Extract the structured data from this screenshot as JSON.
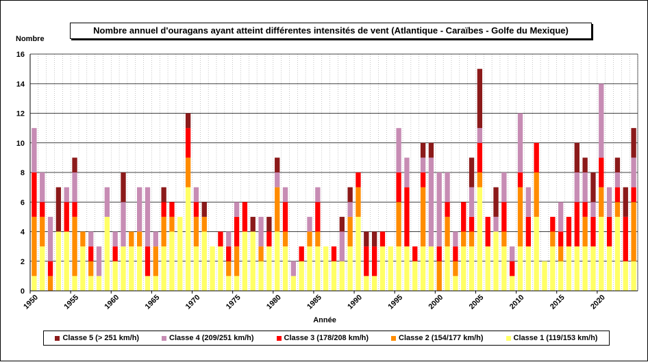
{
  "chart_data": {
    "type": "bar",
    "stacked": true,
    "title": "Nombre annuel d'ouragans ayant atteint différentes intensités de vent (Atlantique - Caraïbes - Golfe du Mexique)",
    "xlabel": "Année",
    "ylabel": "Nombre",
    "ylim": [
      0,
      16
    ],
    "yticks": [
      0,
      2,
      4,
      6,
      8,
      10,
      12,
      14,
      16
    ],
    "xtick_labels": [
      "1950",
      "1955",
      "1960",
      "1965",
      "1970",
      "1975",
      "1980",
      "1985",
      "1990",
      "1995",
      "2000",
      "2005",
      "2010",
      "2015",
      "2020"
    ],
    "grid": true,
    "legend_position": "bottom",
    "categories": [
      "1950",
      "1951",
      "1952",
      "1953",
      "1954",
      "1955",
      "1956",
      "1957",
      "1958",
      "1959",
      "1960",
      "1961",
      "1962",
      "1963",
      "1964",
      "1965",
      "1966",
      "1967",
      "1968",
      "1969",
      "1970",
      "1971",
      "1972",
      "1973",
      "1974",
      "1975",
      "1976",
      "1977",
      "1978",
      "1979",
      "1980",
      "1981",
      "1982",
      "1983",
      "1984",
      "1985",
      "1986",
      "1987",
      "1988",
      "1989",
      "1990",
      "1991",
      "1992",
      "1993",
      "1994",
      "1995",
      "1996",
      "1997",
      "1998",
      "1999",
      "2000",
      "2001",
      "2002",
      "2003",
      "2004",
      "2005",
      "2006",
      "2007",
      "2008",
      "2009",
      "2010",
      "2011",
      "2012",
      "2013",
      "2014",
      "2015",
      "2016",
      "2017",
      "2018",
      "2019",
      "2020",
      "2021",
      "2022",
      "2023",
      "2024"
    ],
    "series": [
      {
        "name": "Classe 1 (119/153 km/h)",
        "color": "#ffff66",
        "values": [
          1,
          3,
          0,
          4,
          4,
          1,
          3,
          1,
          1,
          5,
          2,
          3,
          3,
          3,
          1,
          1,
          3,
          4,
          5,
          7,
          3,
          4,
          3,
          3,
          1,
          1,
          4,
          4,
          2,
          3,
          4,
          3,
          1,
          2,
          3,
          3,
          3,
          2,
          2,
          3,
          5,
          1,
          1,
          3,
          3,
          3,
          3,
          2,
          3,
          3,
          0,
          3,
          1,
          3,
          3,
          7,
          3,
          4,
          3,
          1,
          3,
          3,
          5,
          2,
          3,
          2,
          3,
          3,
          3,
          3,
          5,
          3,
          5,
          2,
          2
        ]
      },
      {
        "name": "Classe 2 (154/177 km/h)",
        "color": "#ff8c00",
        "values": [
          4,
          2,
          1,
          0,
          0,
          4,
          1,
          1,
          0,
          0,
          0,
          0,
          1,
          1,
          0,
          2,
          2,
          1,
          0,
          2,
          2,
          1,
          0,
          0,
          1,
          2,
          0,
          0,
          1,
          0,
          3,
          1,
          0,
          0,
          1,
          1,
          0,
          0,
          0,
          2,
          2,
          0,
          0,
          0,
          0,
          3,
          0,
          0,
          4,
          0,
          2,
          2,
          1,
          1,
          1,
          1,
          0,
          0,
          1,
          0,
          4,
          0,
          3,
          0,
          1,
          1,
          0,
          0,
          2,
          0,
          2,
          0,
          1,
          0,
          4
        ]
      },
      {
        "name": "Classe 3 (178/208 km/h)",
        "color": "#ff0000",
        "values": [
          3,
          1,
          1,
          0,
          2,
          1,
          0,
          1,
          0,
          0,
          1,
          0,
          0,
          0,
          2,
          0,
          1,
          1,
          0,
          2,
          1,
          0,
          0,
          1,
          1,
          2,
          2,
          0,
          0,
          1,
          0,
          2,
          0,
          1,
          0,
          2,
          0,
          1,
          0,
          0,
          1,
          2,
          2,
          1,
          0,
          2,
          4,
          1,
          1,
          0,
          1,
          1,
          1,
          2,
          1,
          2,
          2,
          0,
          2,
          1,
          1,
          2,
          2,
          0,
          1,
          1,
          2,
          3,
          1,
          2,
          2,
          2,
          1,
          3,
          1
        ]
      },
      {
        "name": "Classe 4 (209/251 km/h)",
        "color": "#c78cb4",
        "values": [
          3,
          2,
          3,
          0,
          1,
          2,
          0,
          1,
          2,
          2,
          1,
          3,
          0,
          3,
          4,
          1,
          0,
          0,
          0,
          0,
          1,
          0,
          0,
          0,
          1,
          1,
          0,
          0,
          2,
          0,
          1,
          1,
          1,
          0,
          1,
          1,
          0,
          0,
          2,
          1,
          0,
          0,
          0,
          0,
          0,
          3,
          2,
          0,
          1,
          6,
          5,
          2,
          1,
          0,
          2,
          1,
          0,
          1,
          2,
          1,
          4,
          2,
          0,
          0,
          0,
          2,
          0,
          2,
          2,
          1,
          5,
          2,
          1,
          0,
          2
        ]
      },
      {
        "name": "Classe 5 (> 251 km/h)",
        "color": "#8b1a1a",
        "values": [
          0,
          0,
          0,
          3,
          0,
          1,
          0,
          0,
          0,
          0,
          0,
          2,
          0,
          0,
          0,
          0,
          1,
          0,
          0,
          1,
          0,
          1,
          0,
          0,
          0,
          0,
          0,
          1,
          0,
          1,
          1,
          0,
          0,
          0,
          0,
          0,
          0,
          0,
          1,
          1,
          0,
          1,
          1,
          0,
          0,
          0,
          0,
          0,
          1,
          1,
          0,
          0,
          0,
          0,
          2,
          4,
          0,
          2,
          0,
          0,
          0,
          0,
          0,
          0,
          0,
          0,
          0,
          2,
          1,
          2,
          0,
          0,
          1,
          2,
          2
        ]
      }
    ]
  }
}
